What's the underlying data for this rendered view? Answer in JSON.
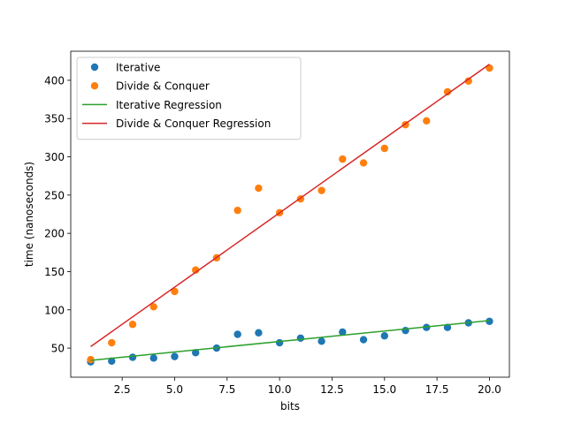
{
  "chart_data": {
    "type": "scatter",
    "title": "",
    "xlabel": "bits",
    "ylabel": "time (nanoseconds)",
    "xlim": [
      0.05,
      20.95
    ],
    "ylim": [
      12,
      438
    ],
    "xticks": [
      2.5,
      5.0,
      7.5,
      10.0,
      12.5,
      15.0,
      17.5,
      20.0
    ],
    "xtick_labels": [
      "2.5",
      "5.0",
      "7.5",
      "10.0",
      "12.5",
      "15.0",
      "17.5",
      "20.0"
    ],
    "yticks": [
      50,
      100,
      150,
      200,
      250,
      300,
      350,
      400
    ],
    "ytick_labels": [
      "50",
      "100",
      "150",
      "200",
      "250",
      "300",
      "350",
      "400"
    ],
    "grid": false,
    "legend_position": "top-left",
    "series": [
      {
        "name": "Iterative",
        "kind": "scatter",
        "color": "#1f77b4",
        "x": [
          1,
          2,
          3,
          4,
          5,
          6,
          7,
          8,
          9,
          10,
          11,
          12,
          13,
          14,
          15,
          16,
          17,
          18,
          19,
          20
        ],
        "y": [
          32,
          33,
          38,
          37,
          39,
          44,
          50,
          68,
          70,
          57,
          63,
          59,
          71,
          61,
          66,
          73,
          77,
          77,
          83,
          85
        ]
      },
      {
        "name": "Divide & Conquer",
        "kind": "scatter",
        "color": "#ff7f0e",
        "x": [
          1,
          2,
          3,
          4,
          5,
          6,
          7,
          8,
          9,
          10,
          11,
          12,
          13,
          14,
          15,
          16,
          17,
          18,
          19,
          20
        ],
        "y": [
          35,
          57,
          81,
          104,
          124,
          152,
          168,
          230,
          259,
          227,
          245,
          256,
          297,
          292,
          311,
          342,
          347,
          385,
          399,
          416
        ]
      },
      {
        "name": "Iterative Regression",
        "kind": "line",
        "color": "#2ca02c",
        "x": [
          1,
          20
        ],
        "y": [
          34,
          86
        ]
      },
      {
        "name": "Divide & Conquer Regression",
        "kind": "line",
        "color": "#d62728",
        "x": [
          1,
          20
        ],
        "y": [
          52,
          421
        ]
      }
    ]
  }
}
